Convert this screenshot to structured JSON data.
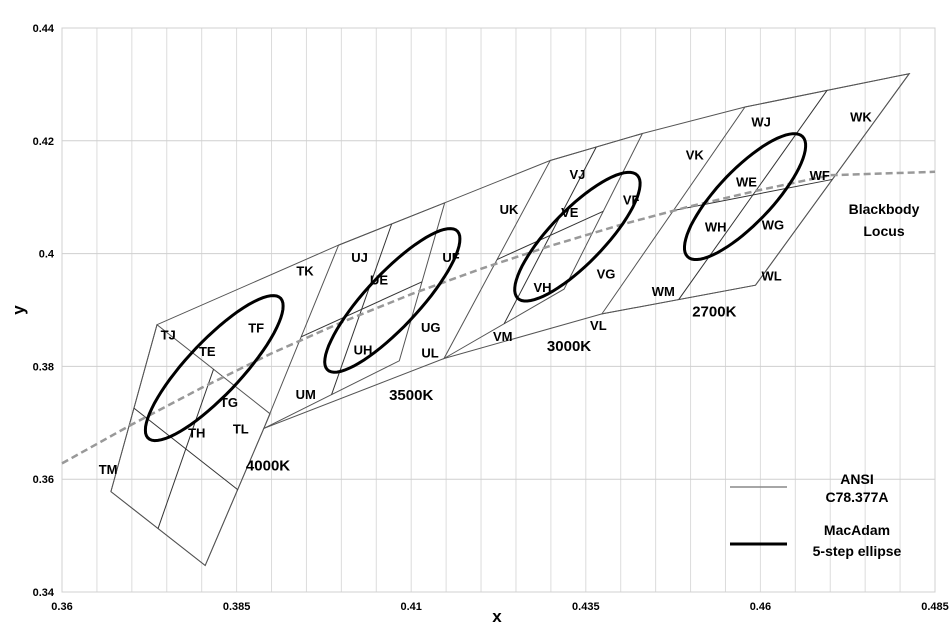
{
  "chart_data": {
    "type": "scatter",
    "title": "",
    "xlabel": "x",
    "ylabel": "y",
    "xlim": [
      0.36,
      0.485
    ],
    "ylim": [
      0.34,
      0.44
    ],
    "x_ticks": [
      "0.36",
      "0.385",
      "0.41",
      "0.435",
      "0.46",
      "0.485"
    ],
    "y_ticks": [
      "0.34",
      "0.36",
      "0.38",
      "0.4",
      "0.42",
      "0.44"
    ],
    "x_tick_values": [
      0.36,
      0.385,
      0.41,
      0.435,
      0.46,
      0.485
    ],
    "y_tick_values": [
      0.34,
      0.36,
      0.38,
      0.4,
      0.42,
      0.44
    ],
    "grid": true,
    "legend_position": "bottom-right",
    "legend": [
      {
        "label_lines": [
          "ANSI",
          "C78.377A"
        ],
        "style": "thin",
        "color": "#888888"
      },
      {
        "label_lines": [
          "MacAdam",
          "5-step ellipse"
        ],
        "style": "thick",
        "color": "#000000"
      }
    ],
    "series": [
      {
        "name": "Blackbody Locus",
        "label_lines": [
          "Blackbody",
          "Locus"
        ],
        "style": "dashed",
        "color": "#999999",
        "x": [
          0.36,
          0.37,
          0.38,
          0.39,
          0.4,
          0.41,
          0.42,
          0.43,
          0.44,
          0.45,
          0.46,
          0.47,
          0.485
        ],
        "y": [
          0.3628,
          0.3697,
          0.3762,
          0.3823,
          0.3878,
          0.3928,
          0.3973,
          0.4014,
          0.4051,
          0.4084,
          0.4113,
          0.4139,
          0.4145
        ]
      }
    ],
    "ansi_quads": [
      {
        "cct": "4000K",
        "corners": [
          [
            0.367,
            0.3578
          ],
          [
            0.3736,
            0.3874
          ],
          [
            0.3898,
            0.3716
          ],
          [
            0.3805,
            0.3447
          ]
        ]
      },
      {
        "cct": "3500K",
        "corners": [
          [
            0.3996,
            0.4015
          ],
          [
            0.4148,
            0.409
          ],
          [
            0.4083,
            0.381
          ],
          [
            0.3889,
            0.369
          ]
        ]
      },
      {
        "cct": "3000K",
        "corners": [
          [
            0.4299,
            0.4165
          ],
          [
            0.4431,
            0.4213
          ],
          [
            0.4319,
            0.3937
          ],
          [
            0.4147,
            0.3814
          ]
        ]
      },
      {
        "cct": "2700K",
        "corners": [
          [
            0.4578,
            0.426
          ],
          [
            0.4813,
            0.4319
          ],
          [
            0.4593,
            0.3944
          ],
          [
            0.4373,
            0.3893
          ]
        ]
      }
    ],
    "ansi_polygon": [
      [
        0.367,
        0.3578
      ],
      [
        0.3736,
        0.3874
      ],
      [
        0.3996,
        0.4015
      ],
      [
        0.4148,
        0.409
      ],
      [
        0.4299,
        0.4165
      ],
      [
        0.4431,
        0.4213
      ],
      [
        0.4578,
        0.426
      ],
      [
        0.4813,
        0.4319
      ],
      [
        0.4593,
        0.3944
      ],
      [
        0.4373,
        0.3893
      ],
      [
        0.4147,
        0.3814
      ],
      [
        0.3889,
        0.369
      ],
      [
        0.3805,
        0.3447
      ]
    ],
    "ellipses": [
      {
        "cct": "4000K",
        "center": [
          0.3818,
          0.3797
        ],
        "a": 0.01565,
        "b": 0.0042,
        "angle_deg": 53.7
      },
      {
        "cct": "3500K",
        "center": [
          0.4073,
          0.3917
        ],
        "a": 0.01545,
        "b": 0.00414,
        "angle_deg": 54.0
      },
      {
        "cct": "3000K",
        "center": [
          0.4338,
          0.403
        ],
        "a": 0.0139,
        "b": 0.0042,
        "angle_deg": 53.2
      },
      {
        "cct": "2700K",
        "center": [
          0.4578,
          0.4101
        ],
        "a": 0.0135,
        "b": 0.0042,
        "angle_deg": 53.7
      }
    ],
    "bin_labels": [
      {
        "text": "TJ",
        "x": 0.3752,
        "y": 0.3857
      },
      {
        "text": "TF",
        "x": 0.3878,
        "y": 0.3869
      },
      {
        "text": "TE",
        "x": 0.3808,
        "y": 0.3827
      },
      {
        "text": "TG",
        "x": 0.3839,
        "y": 0.3737
      },
      {
        "text": "TH",
        "x": 0.3793,
        "y": 0.3683
      },
      {
        "text": "TL",
        "x": 0.3856,
        "y": 0.369
      },
      {
        "text": "TM",
        "x": 0.3666,
        "y": 0.3618
      },
      {
        "text": "TK",
        "x": 0.3948,
        "y": 0.397
      },
      {
        "text": "UJ",
        "x": 0.4026,
        "y": 0.3994
      },
      {
        "text": "UE",
        "x": 0.4054,
        "y": 0.3954
      },
      {
        "text": "UF",
        "x": 0.4157,
        "y": 0.3994
      },
      {
        "text": "UG",
        "x": 0.4128,
        "y": 0.387
      },
      {
        "text": "UH",
        "x": 0.4031,
        "y": 0.383
      },
      {
        "text": "UL",
        "x": 0.4127,
        "y": 0.3825
      },
      {
        "text": "UM",
        "x": 0.3949,
        "y": 0.3751
      },
      {
        "text": "UK",
        "x": 0.424,
        "y": 0.4079
      },
      {
        "text": "VJ",
        "x": 0.4338,
        "y": 0.4141
      },
      {
        "text": "VE",
        "x": 0.4327,
        "y": 0.4074
      },
      {
        "text": "VF",
        "x": 0.4415,
        "y": 0.4096
      },
      {
        "text": "VG",
        "x": 0.4379,
        "y": 0.3965
      },
      {
        "text": "VH",
        "x": 0.4288,
        "y": 0.3941
      },
      {
        "text": "VL",
        "x": 0.4368,
        "y": 0.3873
      },
      {
        "text": "VM",
        "x": 0.4231,
        "y": 0.3854
      },
      {
        "text": "VK",
        "x": 0.4506,
        "y": 0.4176
      },
      {
        "text": "WJ",
        "x": 0.4601,
        "y": 0.4234
      },
      {
        "text": "WK",
        "x": 0.4744,
        "y": 0.4243
      },
      {
        "text": "WE",
        "x": 0.458,
        "y": 0.4128
      },
      {
        "text": "WF",
        "x": 0.4685,
        "y": 0.4139
      },
      {
        "text": "WH",
        "x": 0.4536,
        "y": 0.4048
      },
      {
        "text": "WG",
        "x": 0.4618,
        "y": 0.4052
      },
      {
        "text": "WL",
        "x": 0.4616,
        "y": 0.3961
      },
      {
        "text": "WM",
        "x": 0.4461,
        "y": 0.3934
      }
    ],
    "cct_labels": [
      {
        "text": "4000K",
        "x": 0.3895,
        "y": 0.3624
      },
      {
        "text": "3500K",
        "x": 0.41,
        "y": 0.3749
      },
      {
        "text": "3000K",
        "x": 0.4326,
        "y": 0.3836
      },
      {
        "text": "2700K",
        "x": 0.4534,
        "y": 0.3897
      }
    ]
  }
}
